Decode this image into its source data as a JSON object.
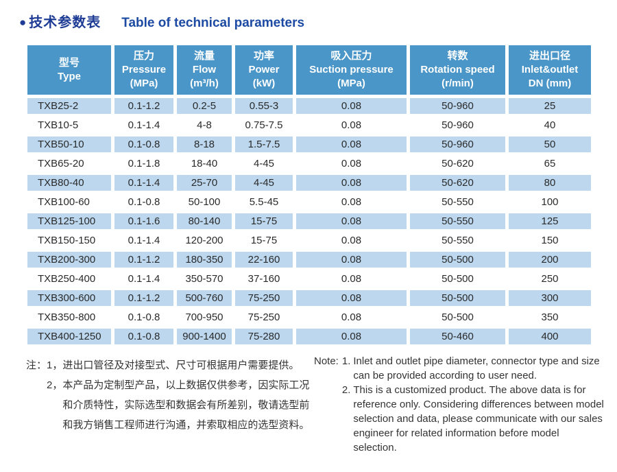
{
  "title": {
    "bullet": "●",
    "cn": "技术参数表",
    "en": "Table of technical parameters"
  },
  "table": {
    "columns": [
      {
        "cn": "型号",
        "en": "Type",
        "unit": ""
      },
      {
        "cn": "压力",
        "en": "Pressure",
        "unit": "(MPa)"
      },
      {
        "cn": "流量",
        "en": "Flow",
        "unit": "(m³/h)"
      },
      {
        "cn": "功率",
        "en": "Power",
        "unit": "(kW)"
      },
      {
        "cn": "吸入压力",
        "en": "Suction pressure",
        "unit": "(MPa)"
      },
      {
        "cn": "转数",
        "en": "Rotation speed",
        "unit": "(r/min)"
      },
      {
        "cn": "进出口径",
        "en": "Inlet&outlet",
        "unit": "DN (mm)"
      }
    ],
    "rows": [
      [
        "TXB25-2",
        "0.1-1.2",
        "0.2-5",
        "0.55-3",
        "0.08",
        "50-960",
        "25"
      ],
      [
        "TXB10-5",
        "0.1-1.4",
        "4-8",
        "0.75-7.5",
        "0.08",
        "50-960",
        "40"
      ],
      [
        "TXB50-10",
        "0.1-0.8",
        "8-18",
        "1.5-7.5",
        "0.08",
        "50-960",
        "50"
      ],
      [
        "TXB65-20",
        "0.1-1.8",
        "18-40",
        "4-45",
        "0.08",
        "50-620",
        "65"
      ],
      [
        "TXB80-40",
        "0.1-1.4",
        "25-70",
        "4-45",
        "0.08",
        "50-620",
        "80"
      ],
      [
        "TXB100-60",
        "0.1-0.8",
        "50-100",
        "5.5-45",
        "0.08",
        "50-550",
        "100"
      ],
      [
        "TXB125-100",
        "0.1-1.6",
        "80-140",
        "15-75",
        "0.08",
        "50-550",
        "125"
      ],
      [
        "TXB150-150",
        "0.1-1.4",
        "120-200",
        "15-75",
        "0.08",
        "50-550",
        "150"
      ],
      [
        "TXB200-300",
        "0.1-1.2",
        "180-350",
        "22-160",
        "0.08",
        "50-500",
        "200"
      ],
      [
        "TXB250-400",
        "0.1-1.4",
        "350-570",
        "37-160",
        "0.08",
        "50-500",
        "250"
      ],
      [
        "TXB300-600",
        "0.1-1.2",
        "500-760",
        "75-250",
        "0.08",
        "50-500",
        "300"
      ],
      [
        "TXB350-800",
        "0.1-0.8",
        "700-950",
        "75-250",
        "0.08",
        "50-500",
        "350"
      ],
      [
        "TXB400-1250",
        "0.1-0.8",
        "900-1400",
        "75-280",
        "0.08",
        "50-460",
        "400"
      ]
    ]
  },
  "notes_cn": {
    "label": "注：",
    "items": [
      {
        "num": "1，",
        "text": "进出口管径及对接型式、尺寸可根据用户需要提供。"
      },
      {
        "num": "2，",
        "text": "本产品为定制型产品，以上数据仅供参考，因实际工况和介质特性，实际选型和数据会有所差别，敬请选型前和我方销售工程师进行沟通，并索取相应的选型资料。"
      }
    ]
  },
  "notes_en": {
    "label": "Note:",
    "items": [
      {
        "num": "1.",
        "text": "Inlet and outlet pipe diameter, connector type and size can be provided according to user need."
      },
      {
        "num": "2.",
        "text": "This is a customized product. The above data is for reference only. Considering differences between model selection and data, please communicate with our sales engineer for related information before model selection."
      }
    ]
  },
  "colors": {
    "title_cn": "#1e3c95",
    "title_en": "#1d4aa3",
    "header_bg": "#4a96c8",
    "row_alt_bg": "#bcd7ee",
    "row_bg": "#ffffff",
    "cell_text": "#2a2a2a"
  }
}
